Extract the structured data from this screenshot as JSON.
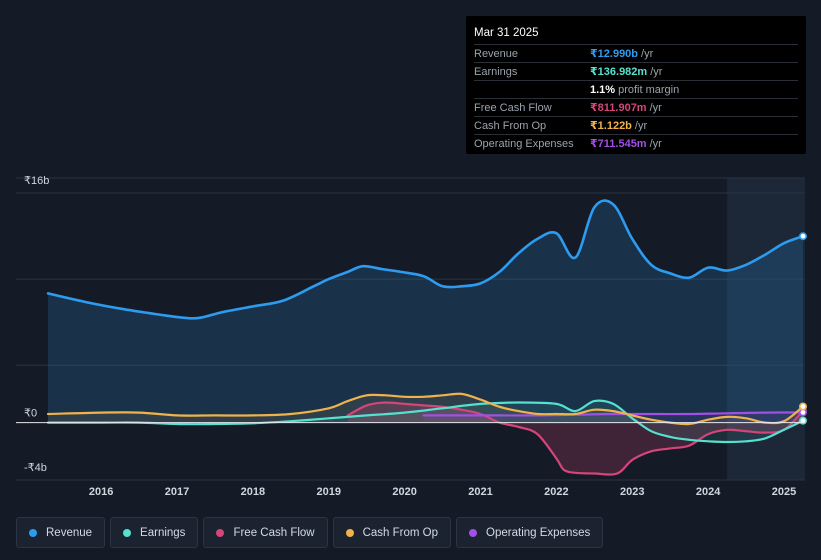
{
  "tooltip": {
    "date": "Mar 31 2025",
    "rows": [
      {
        "label": "Revenue",
        "value": "₹12.990b",
        "unit": "/yr",
        "color": "#2d9cf0"
      },
      {
        "label": "Earnings",
        "value": "₹136.982m",
        "unit": "/yr",
        "color": "#55e0cf"
      },
      {
        "label": "",
        "value": "1.1%",
        "unit": "profit margin",
        "color": "#ffffff"
      },
      {
        "label": "Free Cash Flow",
        "value": "₹811.907m",
        "unit": "/yr",
        "color": "#d4457a"
      },
      {
        "label": "Cash From Op",
        "value": "₹1.122b",
        "unit": "/yr",
        "color": "#f0b34c"
      },
      {
        "label": "Operating Expenses",
        "value": "₹711.545m",
        "unit": "/yr",
        "color": "#a34ee8"
      }
    ]
  },
  "legend": [
    {
      "label": "Revenue",
      "color": "#2d9cf0"
    },
    {
      "label": "Earnings",
      "color": "#55e0cf"
    },
    {
      "label": "Free Cash Flow",
      "color": "#d4457a"
    },
    {
      "label": "Cash From Op",
      "color": "#f0b34c"
    },
    {
      "label": "Operating Expenses",
      "color": "#a34ee8"
    }
  ],
  "chart_data": {
    "type": "area",
    "y_unit_labels": {
      "top": "₹16b",
      "zero": "₹0",
      "bottom": "-₹4b"
    },
    "ylim": [
      -4,
      16
    ],
    "xlim": [
      2015.3,
      2025.25
    ],
    "x_ticks": [
      "2016",
      "2017",
      "2018",
      "2019",
      "2020",
      "2021",
      "2022",
      "2023",
      "2024",
      "2025"
    ],
    "forecast_start": 2024.25,
    "series": [
      {
        "name": "Revenue",
        "color": "#2d9cf0",
        "x": [
          2015.3,
          2015.8,
          2016.3,
          2016.8,
          2017.1,
          2017.3,
          2017.6,
          2018.0,
          2018.4,
          2018.8,
          2019.0,
          2019.25,
          2019.45,
          2019.7,
          2019.95,
          2020.25,
          2020.5,
          2020.75,
          2021.0,
          2021.25,
          2021.5,
          2021.75,
          2022.0,
          2022.25,
          2022.5,
          2022.75,
          2023.0,
          2023.25,
          2023.5,
          2023.75,
          2024.0,
          2024.25,
          2024.5,
          2024.75,
          2025.0,
          2025.25
        ],
        "values": [
          9.0,
          8.4,
          7.9,
          7.5,
          7.3,
          7.3,
          7.7,
          8.1,
          8.5,
          9.5,
          10.0,
          10.5,
          10.9,
          10.7,
          10.5,
          10.2,
          9.5,
          9.5,
          9.7,
          10.5,
          11.8,
          12.8,
          13.2,
          11.5,
          15.0,
          15.2,
          12.8,
          11.0,
          10.4,
          10.1,
          10.8,
          10.6,
          11.0,
          11.7,
          12.5,
          12.99
        ]
      },
      {
        "name": "Earnings",
        "color": "#55e0cf",
        "x": [
          2015.3,
          2016.0,
          2016.5,
          2017.0,
          2017.5,
          2018.0,
          2018.5,
          2019.0,
          2019.5,
          2020.0,
          2020.5,
          2021.0,
          2021.5,
          2022.0,
          2022.25,
          2022.5,
          2022.75,
          2023.0,
          2023.25,
          2023.5,
          2023.75,
          2024.0,
          2024.25,
          2024.5,
          2024.75,
          2025.0,
          2025.25
        ],
        "values": [
          0.0,
          0.0,
          0.0,
          -0.1,
          -0.1,
          -0.05,
          0.1,
          0.3,
          0.5,
          0.7,
          1.0,
          1.3,
          1.4,
          1.3,
          0.8,
          1.5,
          1.3,
          0.3,
          -0.6,
          -1.0,
          -1.2,
          -1.3,
          -1.35,
          -1.3,
          -1.1,
          -0.5,
          0.137
        ]
      },
      {
        "name": "Free Cash Flow",
        "color": "#d4457a",
        "x": [
          2019.25,
          2019.5,
          2019.75,
          2020.0,
          2020.25,
          2020.5,
          2020.75,
          2021.0,
          2021.25,
          2021.5,
          2021.75,
          2022.0,
          2022.1,
          2022.25,
          2022.5,
          2022.8,
          2023.0,
          2023.25,
          2023.5,
          2023.75,
          2024.0,
          2024.25,
          2024.5,
          2024.75,
          2025.0,
          2025.25
        ],
        "values": [
          0.5,
          1.2,
          1.4,
          1.3,
          1.2,
          1.1,
          0.9,
          0.6,
          0.0,
          -0.3,
          -0.8,
          -2.5,
          -3.3,
          -3.5,
          -3.55,
          -3.55,
          -2.6,
          -2.0,
          -1.8,
          -1.6,
          -0.8,
          -0.5,
          -0.6,
          -0.7,
          -0.5,
          0.812
        ]
      },
      {
        "name": "Cash From Op",
        "color": "#f0b34c",
        "x": [
          2015.3,
          2016.0,
          2016.5,
          2017.0,
          2017.5,
          2018.0,
          2018.5,
          2019.0,
          2019.25,
          2019.5,
          2019.75,
          2020.0,
          2020.25,
          2020.5,
          2020.75,
          2021.0,
          2021.25,
          2021.5,
          2021.75,
          2022.0,
          2022.25,
          2022.5,
          2022.75,
          2023.0,
          2023.25,
          2023.5,
          2023.75,
          2024.0,
          2024.25,
          2024.5,
          2024.75,
          2025.0,
          2025.25
        ],
        "values": [
          0.6,
          0.7,
          0.7,
          0.5,
          0.5,
          0.5,
          0.6,
          1.0,
          1.5,
          1.9,
          1.9,
          1.8,
          1.8,
          1.9,
          2.0,
          1.6,
          1.1,
          0.8,
          0.6,
          0.6,
          0.6,
          0.9,
          0.8,
          0.5,
          0.2,
          0.0,
          -0.1,
          0.2,
          0.4,
          0.3,
          0.0,
          0.1,
          1.122
        ]
      },
      {
        "name": "Operating Expenses",
        "color": "#a34ee8",
        "x": [
          2020.25,
          2020.75,
          2021.25,
          2021.75,
          2022.25,
          2022.75,
          2023.25,
          2023.75,
          2024.25,
          2024.75,
          2025.25
        ],
        "values": [
          0.5,
          0.5,
          0.5,
          0.5,
          0.55,
          0.6,
          0.6,
          0.6,
          0.65,
          0.7,
          0.712
        ]
      }
    ]
  }
}
